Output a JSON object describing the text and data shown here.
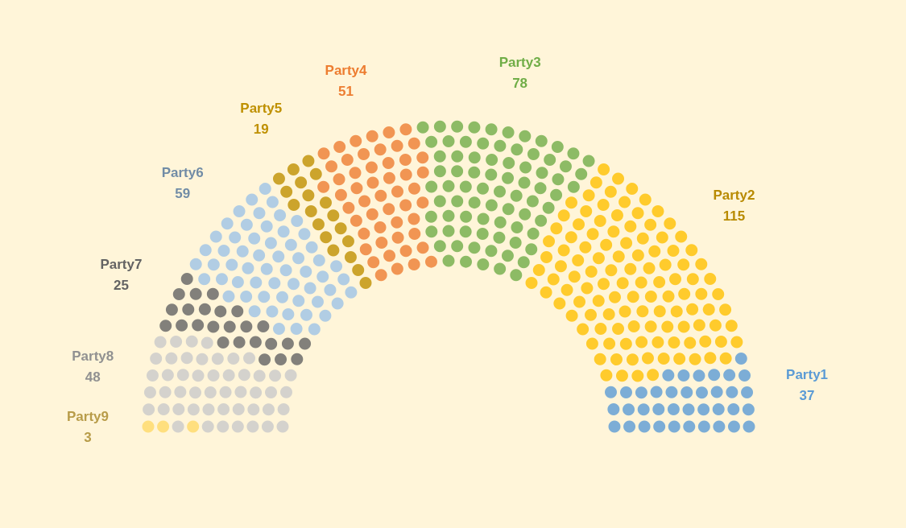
{
  "chart_data": {
    "type": "other",
    "categories": [
      "Party1",
      "Party2",
      "Party3",
      "Party4",
      "Party5",
      "Party6",
      "Party7",
      "Party8",
      "Party9"
    ],
    "values": [
      37,
      115,
      78,
      51,
      19,
      59,
      25,
      48,
      3
    ],
    "colors": [
      "#5b9bd5",
      "#ffc000",
      "#70ad47",
      "#ed7d31",
      "#bf9000",
      "#9dc3e6",
      "#636363",
      "#c9c9c9",
      "#ffd966"
    ],
    "data_labels": true
  }
}
